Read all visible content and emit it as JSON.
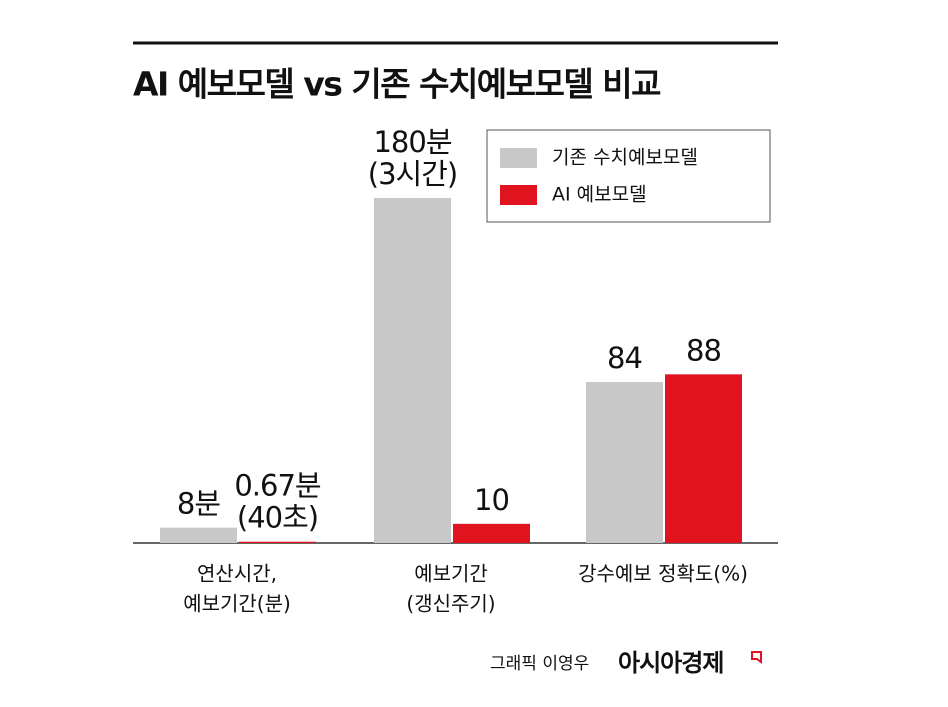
{
  "chart_data": {
    "type": "bar",
    "title": "AI 예보모델 vs 기존 수치예보모델 비교",
    "categories": [
      [
        "연산시간,",
        "예보기간(분)"
      ],
      [
        "예보기간",
        "(갱신주기)"
      ],
      [
        "강수예보 정확도(%)"
      ]
    ],
    "series": [
      {
        "name": "기존 수치예보모델",
        "color": "#c8c8c8",
        "values": [
          8,
          180,
          84
        ],
        "value_labels": [
          [
            "8분"
          ],
          [
            "180분",
            "(3시간)"
          ],
          [
            "84"
          ]
        ]
      },
      {
        "name": "AI 예보모델",
        "color": "#e0141e",
        "values": [
          0.67,
          10,
          88
        ],
        "value_labels": [
          [
            "0.67분",
            "(40초)"
          ],
          [
            "10"
          ],
          [
            "88"
          ]
        ]
      }
    ],
    "legend": "upper right"
  },
  "credit": "그래픽 이영우",
  "source": "아시아경제"
}
